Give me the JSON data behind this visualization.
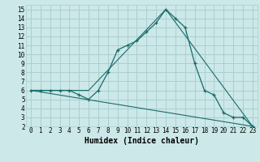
{
  "xlabel": "Humidex (Indice chaleur)",
  "bg_color": "#cce8e8",
  "grid_color": "#aacfcf",
  "line_color": "#1a6b6b",
  "xlim": [
    -0.5,
    23.5
  ],
  "ylim": [
    2,
    15.5
  ],
  "xticks": [
    0,
    1,
    2,
    3,
    4,
    5,
    6,
    7,
    8,
    9,
    10,
    11,
    12,
    13,
    14,
    15,
    16,
    17,
    18,
    19,
    20,
    21,
    22,
    23
  ],
  "yticks": [
    2,
    3,
    4,
    5,
    6,
    7,
    8,
    9,
    10,
    11,
    12,
    13,
    14,
    15
  ],
  "line1_x": [
    0,
    1,
    2,
    3,
    4,
    5,
    6,
    7,
    8,
    9,
    10,
    11,
    12,
    13,
    14,
    15,
    16,
    17,
    18,
    19,
    20,
    21,
    22,
    23
  ],
  "line1_y": [
    6,
    6,
    6,
    6,
    6,
    5.5,
    5,
    6,
    8,
    10.5,
    11,
    11.5,
    12.5,
    13.5,
    15,
    14,
    13,
    9,
    6,
    5.5,
    3.5,
    3,
    3,
    2
  ],
  "line2_x": [
    0,
    6,
    14,
    23
  ],
  "line2_y": [
    6,
    6,
    15,
    2
  ],
  "line3_x": [
    0,
    23
  ],
  "line3_y": [
    6,
    2
  ],
  "tick_fontsize": 5.5,
  "xlabel_fontsize": 7
}
